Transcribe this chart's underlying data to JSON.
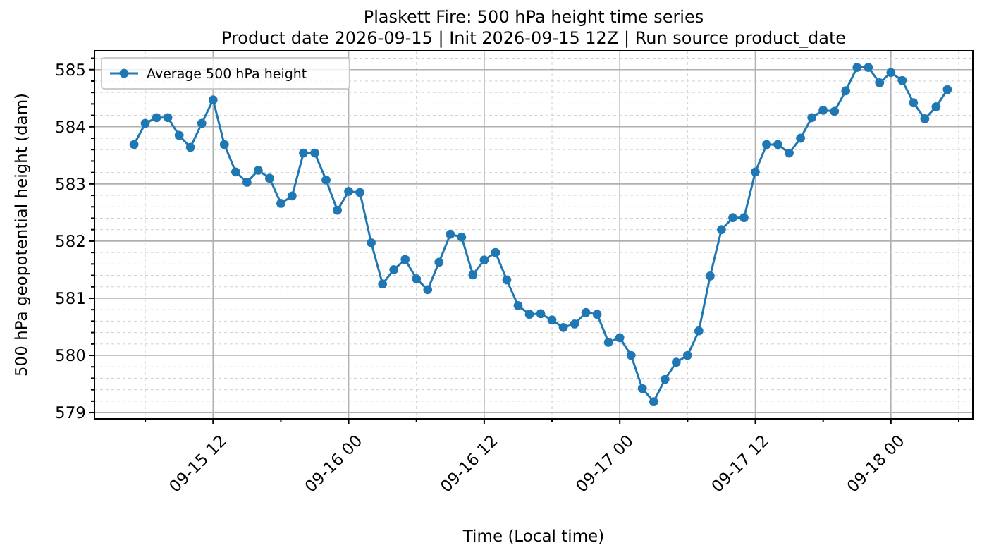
{
  "chart_data": {
    "type": "line",
    "title": "Plaskett Fire: 500 hPa height time series",
    "subtitle": "Product date 2026-09-15 | Init 2026-09-15 12Z | Run source product_date",
    "xlabel": "Time (Local time)",
    "ylabel": "500 hPa geopotential height (dam)",
    "x": [
      "2026-09-15T05:00",
      "2026-09-15T06:00",
      "2026-09-15T07:00",
      "2026-09-15T08:00",
      "2026-09-15T09:00",
      "2026-09-15T10:00",
      "2026-09-15T11:00",
      "2026-09-15T12:00",
      "2026-09-15T13:00",
      "2026-09-15T14:00",
      "2026-09-15T15:00",
      "2026-09-15T16:00",
      "2026-09-15T17:00",
      "2026-09-15T18:00",
      "2026-09-15T19:00",
      "2026-09-15T20:00",
      "2026-09-15T21:00",
      "2026-09-15T22:00",
      "2026-09-15T23:00",
      "2026-09-16T00:00",
      "2026-09-16T01:00",
      "2026-09-16T02:00",
      "2026-09-16T03:00",
      "2026-09-16T04:00",
      "2026-09-16T05:00",
      "2026-09-16T06:00",
      "2026-09-16T07:00",
      "2026-09-16T08:00",
      "2026-09-16T09:00",
      "2026-09-16T10:00",
      "2026-09-16T11:00",
      "2026-09-16T12:00",
      "2026-09-16T13:00",
      "2026-09-16T14:00",
      "2026-09-16T15:00",
      "2026-09-16T16:00",
      "2026-09-16T17:00",
      "2026-09-16T18:00",
      "2026-09-16T19:00",
      "2026-09-16T20:00",
      "2026-09-16T21:00",
      "2026-09-16T22:00",
      "2026-09-16T23:00",
      "2026-09-17T00:00",
      "2026-09-17T01:00",
      "2026-09-17T02:00",
      "2026-09-17T03:00",
      "2026-09-17T04:00",
      "2026-09-17T05:00",
      "2026-09-17T06:00",
      "2026-09-17T07:00",
      "2026-09-17T08:00",
      "2026-09-17T09:00",
      "2026-09-17T10:00",
      "2026-09-17T11:00",
      "2026-09-17T12:00",
      "2026-09-17T13:00",
      "2026-09-17T14:00",
      "2026-09-17T15:00",
      "2026-09-17T16:00",
      "2026-09-17T17:00",
      "2026-09-17T18:00",
      "2026-09-17T19:00",
      "2026-09-17T20:00",
      "2026-09-17T21:00",
      "2026-09-17T22:00",
      "2026-09-17T23:00",
      "2026-09-18T00:00",
      "2026-09-18T01:00",
      "2026-09-18T02:00",
      "2026-09-18T03:00",
      "2026-09-18T04:00",
      "2026-09-18T05:00"
    ],
    "series": [
      {
        "name": "Average 500 hPa height",
        "color": "#1f77b4",
        "values": [
          583.69,
          584.06,
          584.16,
          584.16,
          583.85,
          583.64,
          584.06,
          584.47,
          583.69,
          583.21,
          583.03,
          583.24,
          583.1,
          582.66,
          582.79,
          583.54,
          583.54,
          583.07,
          582.54,
          582.87,
          582.85,
          581.97,
          581.25,
          581.5,
          581.68,
          581.34,
          581.15,
          581.63,
          582.12,
          582.07,
          581.41,
          581.67,
          581.8,
          581.32,
          580.87,
          580.72,
          580.73,
          580.62,
          580.49,
          580.55,
          580.75,
          580.72,
          580.23,
          580.31,
          580.0,
          579.42,
          579.19,
          579.58,
          579.88,
          580.0,
          580.43,
          581.39,
          582.2,
          582.41,
          582.41,
          583.21,
          583.69,
          583.69,
          583.54,
          583.8,
          584.16,
          584.29,
          584.27,
          584.63,
          585.04,
          585.04,
          584.77,
          584.95,
          584.81,
          584.42,
          584.14,
          584.35,
          584.65
        ]
      }
    ],
    "xlim": [
      "2026-09-15T01:30",
      "2026-09-18T07:15"
    ],
    "xticks": [
      {
        "value": "2026-09-15T06:00",
        "label": null
      },
      {
        "value": "2026-09-15T12:00",
        "label": "09-15 12"
      },
      {
        "value": "2026-09-15T18:00",
        "label": null
      },
      {
        "value": "2026-09-16T00:00",
        "label": "09-16 00"
      },
      {
        "value": "2026-09-16T06:00",
        "label": null
      },
      {
        "value": "2026-09-16T12:00",
        "label": "09-16 12"
      },
      {
        "value": "2026-09-16T18:00",
        "label": null
      },
      {
        "value": "2026-09-17T00:00",
        "label": "09-17 00"
      },
      {
        "value": "2026-09-17T06:00",
        "label": null
      },
      {
        "value": "2026-09-17T12:00",
        "label": "09-17 12"
      },
      {
        "value": "2026-09-17T18:00",
        "label": null
      },
      {
        "value": "2026-09-18T00:00",
        "label": "09-18 00"
      },
      {
        "value": "2026-09-18T06:00",
        "label": null
      }
    ],
    "ylim": [
      578.89,
      585.33
    ],
    "yticks": [
      579,
      {
        "value": 579.2,
        "label": null
      },
      {
        "value": 579.4,
        "label": null
      },
      {
        "value": 579.6,
        "label": null
      },
      {
        "value": 579.8,
        "label": null
      },
      580,
      {
        "value": 580.2,
        "label": null
      },
      {
        "value": 580.4,
        "label": null
      },
      {
        "value": 580.6,
        "label": null
      },
      {
        "value": 580.8,
        "label": null
      },
      581,
      {
        "value": 581.2,
        "label": null
      },
      {
        "value": 581.4,
        "label": null
      },
      {
        "value": 581.6,
        "label": null
      },
      {
        "value": 581.8,
        "label": null
      },
      582,
      {
        "value": 582.2,
        "label": null
      },
      {
        "value": 582.4,
        "label": null
      },
      {
        "value": 582.6,
        "label": null
      },
      {
        "value": 582.8,
        "label": null
      },
      583,
      {
        "value": 583.2,
        "label": null
      },
      {
        "value": 583.4,
        "label": null
      },
      {
        "value": 583.6,
        "label": null
      },
      {
        "value": 583.8,
        "label": null
      },
      584,
      {
        "value": 584.2,
        "label": null
      },
      {
        "value": 584.4,
        "label": null
      },
      {
        "value": 584.6,
        "label": null
      },
      {
        "value": 584.8,
        "label": null
      },
      585,
      {
        "value": 585.2,
        "label": null
      }
    ],
    "grid": true,
    "legend": "top left",
    "marker": "circle",
    "line_style": "solid"
  }
}
